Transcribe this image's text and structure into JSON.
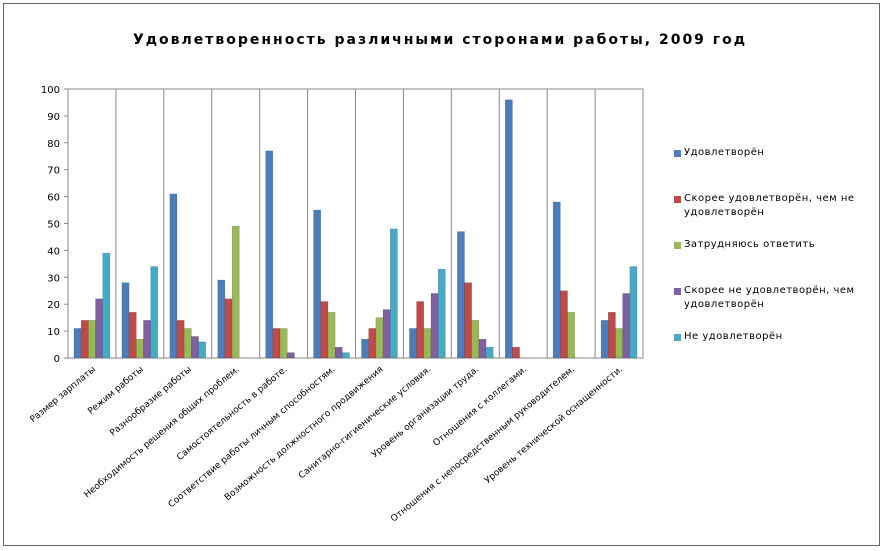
{
  "chart_data": {
    "type": "bar",
    "title": "Удовлетворенность различными сторонами работы, 2009 год",
    "categories": [
      "Размер зарплаты",
      "Режим работы",
      "Разнообразие работы",
      "Необходимость решения общих проблем.",
      "Самостоятельность в работе.",
      "Соответствие работы личным способностям.",
      "Возможность должностного продвижения",
      "Санитарно-гигиенические условия.",
      "Уровень организации труда.",
      "Отношения с коллегами.",
      "Отношения с непосредственным руководителем.",
      "Уровень технической оснащенности."
    ],
    "series": [
      {
        "name": "Удовлетворён",
        "color": "#4a7ebb",
        "values": [
          11,
          28,
          61,
          29,
          77,
          55,
          7,
          11,
          47,
          96,
          58,
          14
        ]
      },
      {
        "name": "Скорее удовлетворён, чем не удовлетворён",
        "color": "#be4b48",
        "values": [
          14,
          17,
          14,
          22,
          11,
          21,
          11,
          21,
          28,
          4,
          25,
          17
        ]
      },
      {
        "name": "Затрудняюсь ответить",
        "color": "#98b954",
        "values": [
          14,
          7,
          11,
          49,
          11,
          17,
          15,
          11,
          14,
          0,
          17,
          11
        ]
      },
      {
        "name": "Скорее не удовлетворён, чем удовлетворён",
        "color": "#7d60a0",
        "values": [
          22,
          14,
          8,
          0,
          2,
          4,
          18,
          24,
          7,
          0,
          0,
          24
        ]
      },
      {
        "name": "Не удовлетворён",
        "color": "#46aac5",
        "values": [
          39,
          34,
          6,
          0,
          0,
          2,
          48,
          33,
          4,
          0,
          0,
          34
        ]
      }
    ],
    "ylim": [
      0,
      100
    ],
    "yticks": [
      0,
      10,
      20,
      30,
      40,
      50,
      60,
      70,
      80,
      90,
      100
    ],
    "grid": "vertical",
    "legend": "right"
  }
}
